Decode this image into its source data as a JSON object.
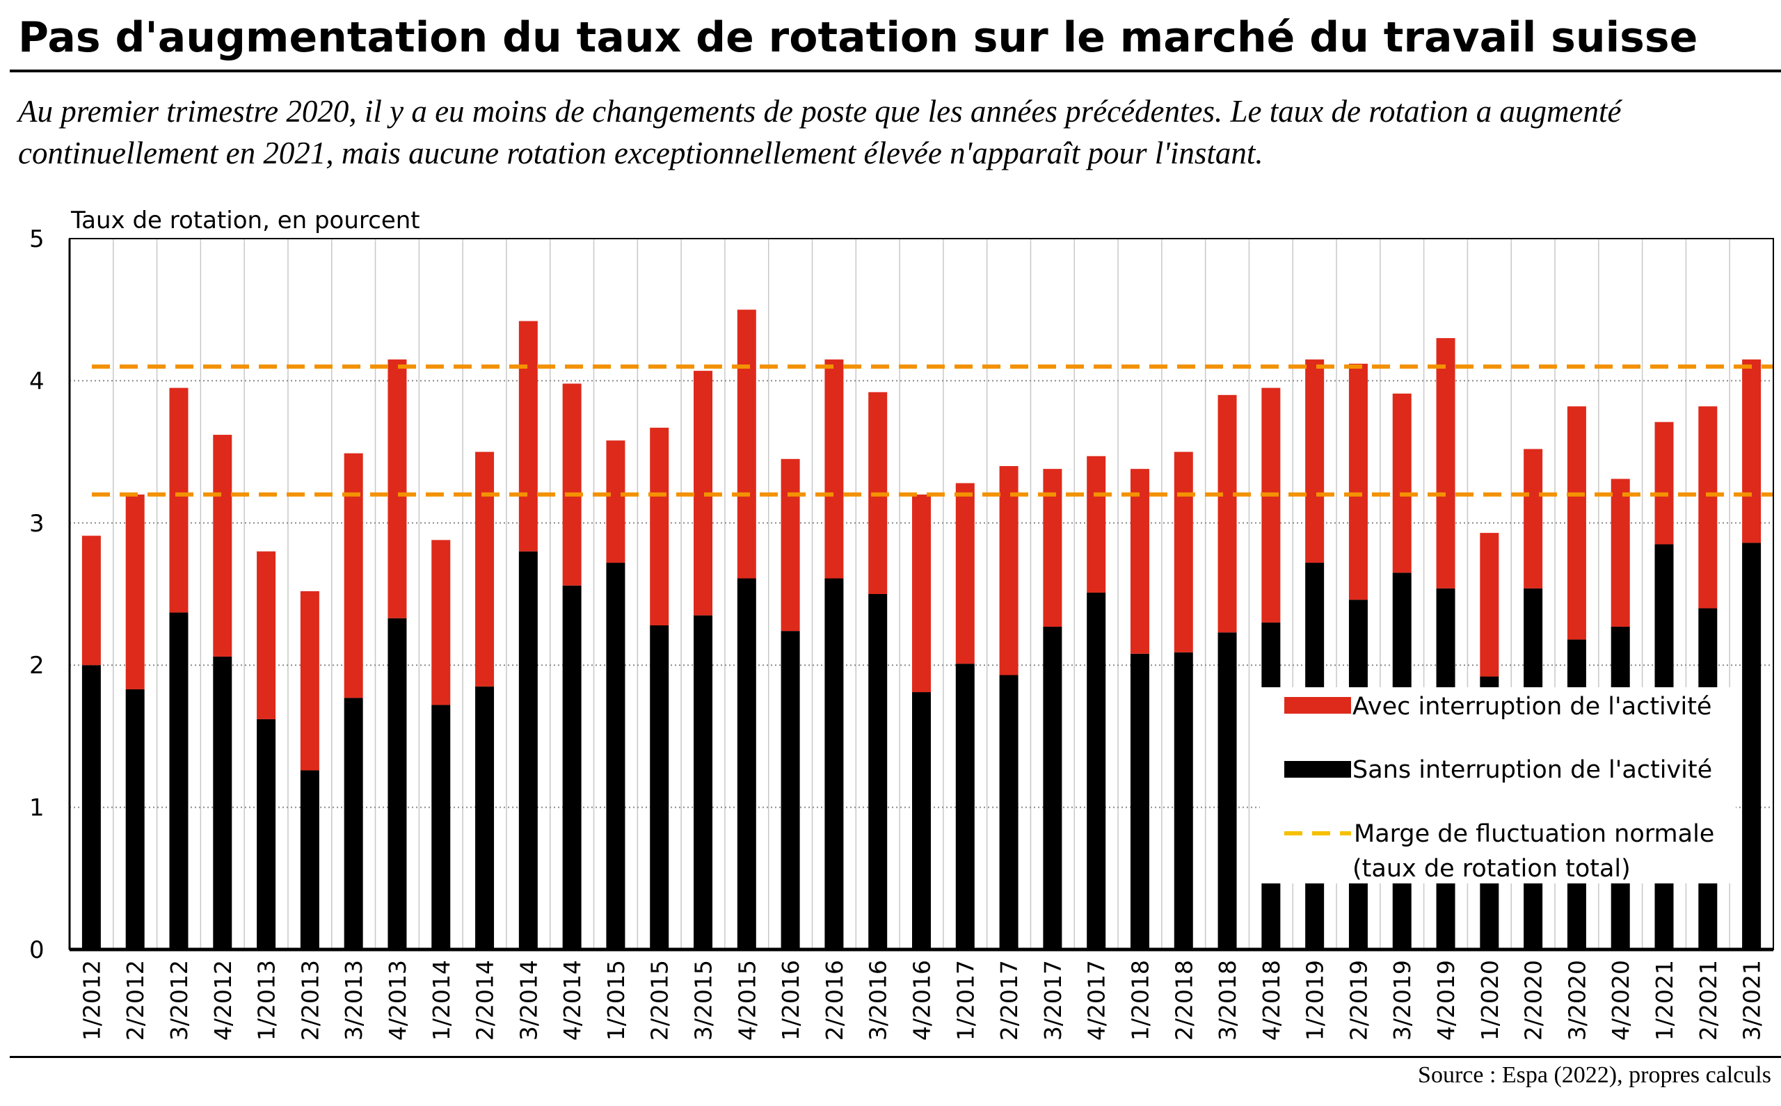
{
  "title": "Pas d'augmentation du taux de rotation sur le marché du travail suisse",
  "subtitle": "Au premier trimestre 2020, il y a eu moins de changements de poste que les années précédentes. Le taux de rotation a augmenté continuellement en 2021, mais aucune rotation exceptionnellement élevée n'apparaît pour l'instant.",
  "source": "Source : Espa (2022), propres calculs",
  "colors": {
    "avec": "#de2a1b",
    "sans": "#000000",
    "band": "#f39200",
    "legend_band": "#f5c000",
    "grid": "#888888"
  },
  "chart_data": {
    "type": "bar",
    "stacked": true,
    "ylabel": "Taux de rotation, en pourcent",
    "ylim": [
      0,
      5
    ],
    "yticks": [
      "0",
      "1",
      "2",
      "3",
      "4",
      "5"
    ],
    "grid": "horizontal dotted",
    "categories": [
      "1/2012",
      "2/2012",
      "3/2012",
      "4/2012",
      "1/2013",
      "2/2013",
      "3/2013",
      "4/2013",
      "1/2014",
      "2/2014",
      "3/2014",
      "4/2014",
      "1/2015",
      "2/2015",
      "3/2015",
      "4/2015",
      "1/2016",
      "2/2016",
      "3/2016",
      "4/2016",
      "1/2017",
      "2/2017",
      "3/2017",
      "4/2017",
      "1/2018",
      "2/2018",
      "3/2018",
      "4/2018",
      "1/2019",
      "2/2019",
      "3/2019",
      "4/2019",
      "1/2020",
      "2/2020",
      "3/2020",
      "4/2020",
      "1/2021",
      "2/2021",
      "3/2021"
    ],
    "series": [
      {
        "name": "Sans interruption de l'activité",
        "values": [
          2.0,
          1.83,
          2.37,
          2.06,
          1.62,
          1.26,
          1.77,
          2.33,
          1.72,
          1.85,
          2.8,
          2.56,
          2.72,
          2.28,
          2.35,
          2.61,
          2.24,
          2.61,
          2.5,
          1.81,
          2.01,
          1.93,
          2.27,
          2.51,
          2.08,
          2.09,
          2.23,
          2.3,
          2.72,
          2.46,
          2.65,
          2.54,
          1.92,
          2.54,
          2.18,
          2.27,
          2.85,
          2.4,
          2.86
        ]
      },
      {
        "name": "Avec interruption de l'activité",
        "values": [
          0.91,
          1.37,
          1.58,
          1.56,
          1.18,
          1.26,
          1.72,
          1.82,
          1.16,
          1.65,
          1.62,
          1.42,
          0.86,
          1.39,
          1.72,
          1.89,
          1.21,
          1.54,
          1.42,
          1.39,
          1.27,
          1.47,
          1.11,
          0.96,
          1.3,
          1.41,
          1.67,
          1.65,
          1.43,
          1.66,
          1.26,
          1.76,
          1.01,
          0.98,
          1.64,
          1.04,
          0.86,
          1.42,
          1.29
        ]
      }
    ],
    "band": {
      "name": "Marge de fluctuation normale (taux de rotation total)",
      "lower": 3.2,
      "upper": 4.1
    },
    "legend": {
      "position": "bottom-right",
      "avec_label": "Avec interruption de l'activité",
      "sans_label": "Sans interruption de l'activité",
      "band_label_line1": "Marge de fluctuation normale",
      "band_label_line2": "(taux de rotation total)"
    }
  }
}
